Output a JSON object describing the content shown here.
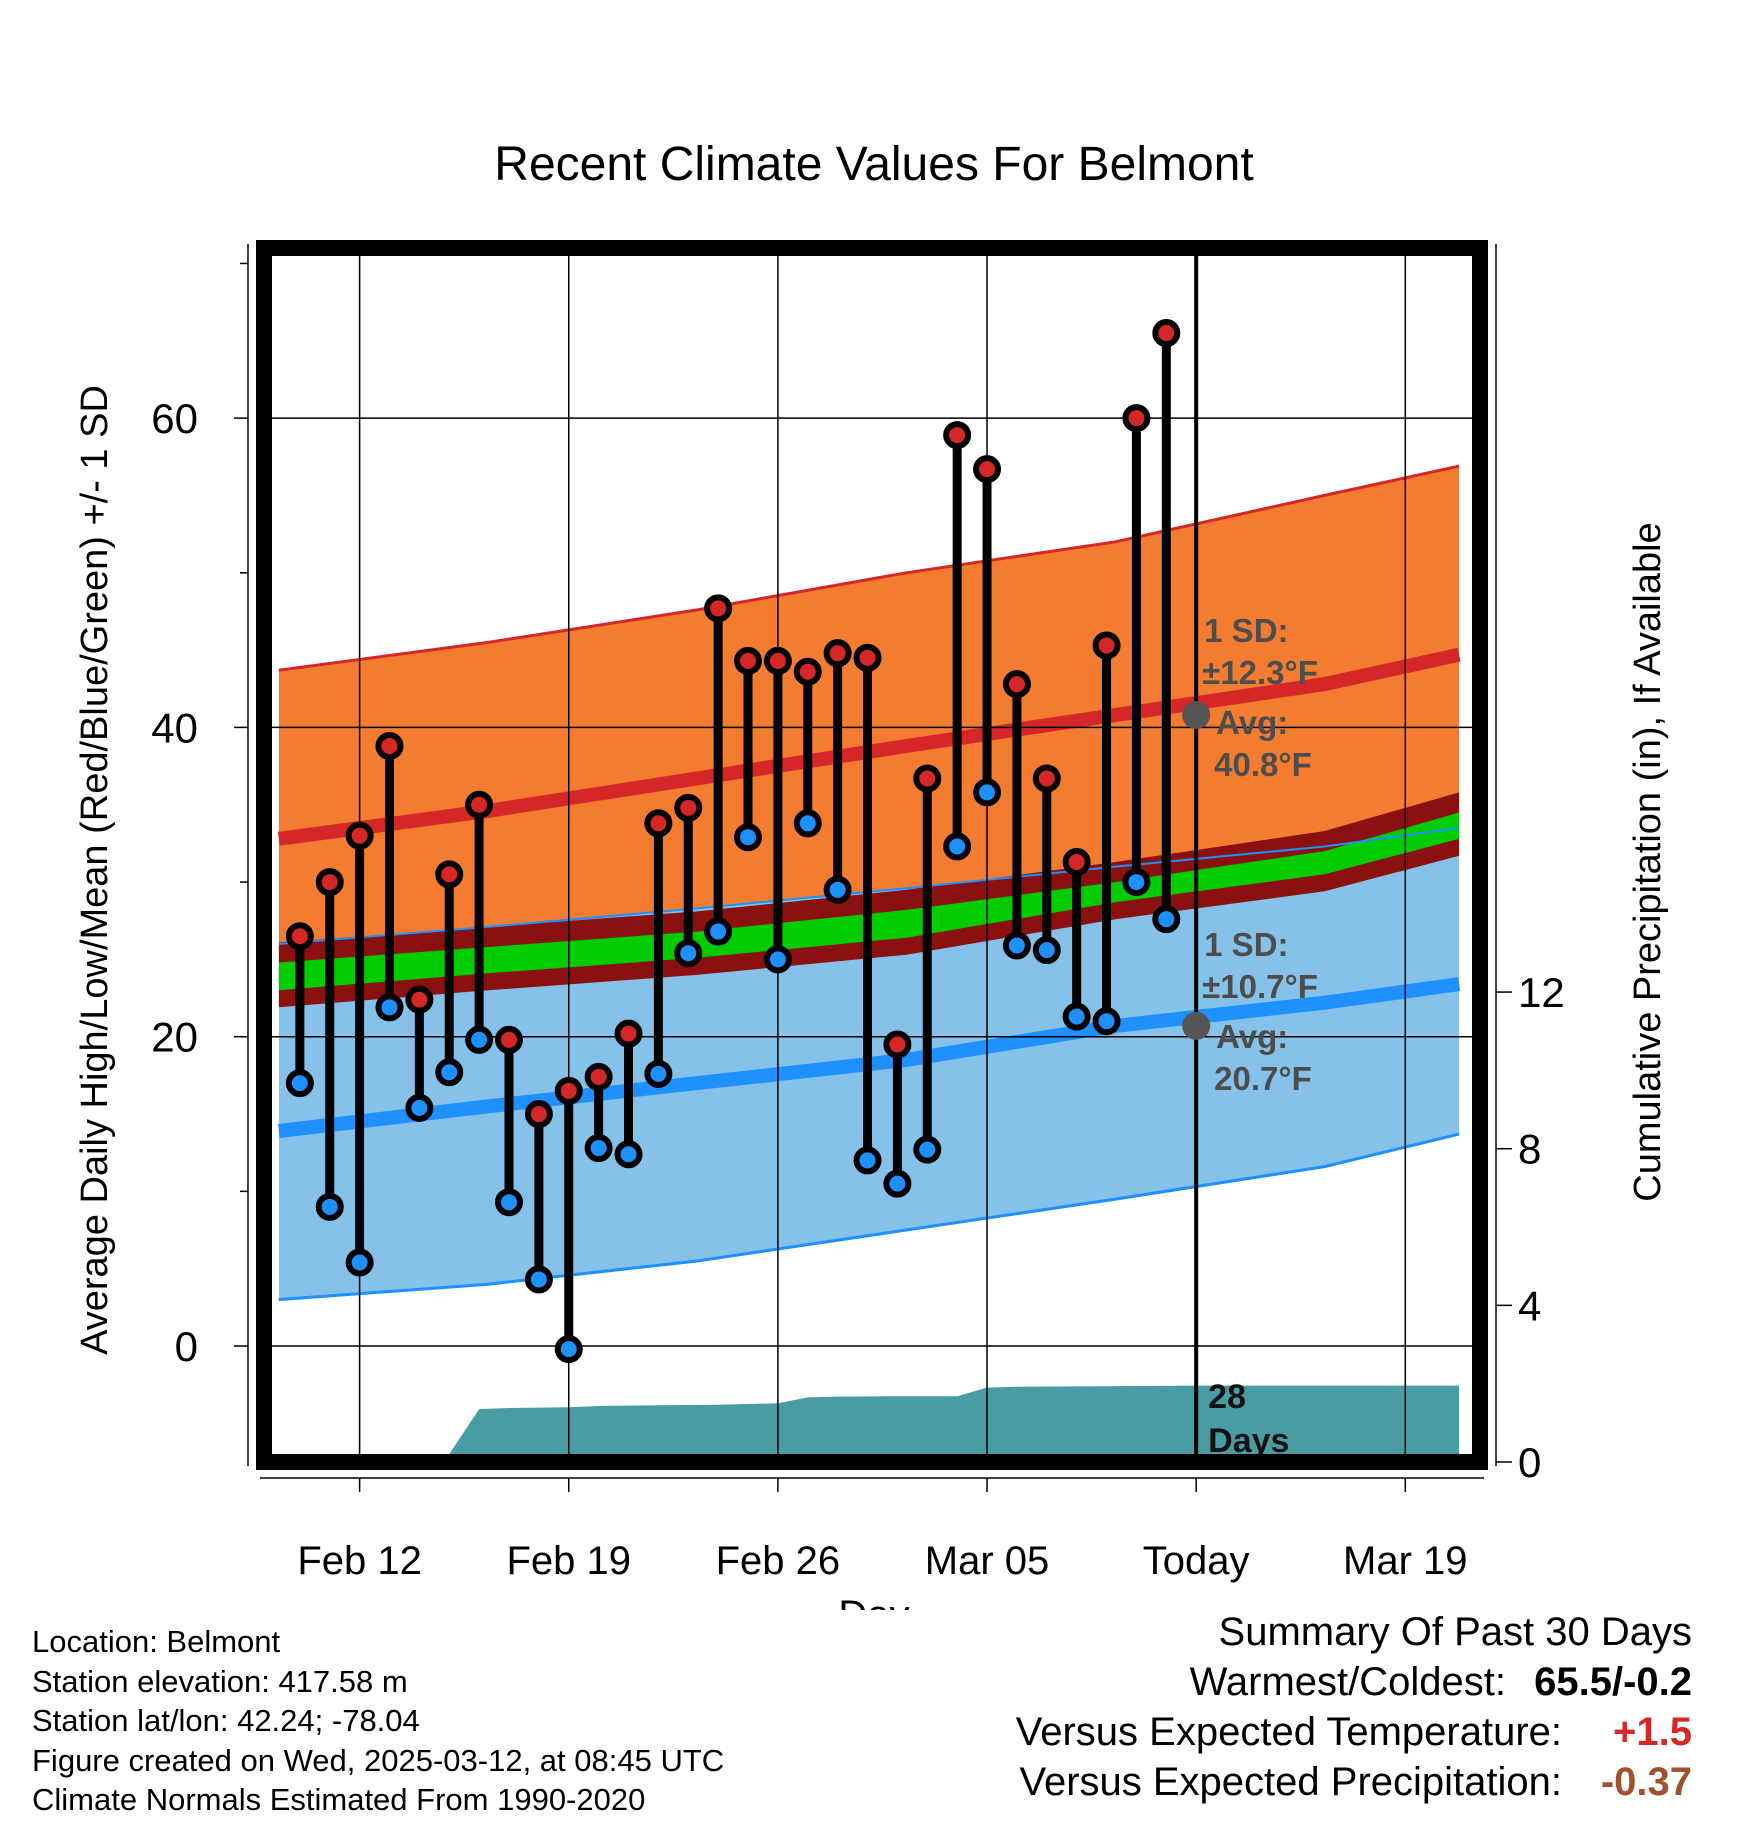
{
  "chart_data": {
    "type": "line",
    "title": "Recent Climate Values For Belmont",
    "xlabel": "Day",
    "ylabel": "Average Daily High/Low/Mean (Red/Blue/Green) +/- 1 SD",
    "y2label": "Cumulative Precipitation (in), If Available",
    "xlim_day": [
      -3.2,
      37.5
    ],
    "ylim": [
      -7.5,
      71
    ],
    "y2lim": [
      0,
      31
    ],
    "y_ticks": [
      0,
      20,
      40,
      60
    ],
    "y2_ticks": [
      0,
      4,
      8,
      12
    ],
    "x_ticks": [
      {
        "day": 0,
        "label": "Feb 12"
      },
      {
        "day": 7,
        "label": "Feb 19"
      },
      {
        "day": 14,
        "label": "Feb 26"
      },
      {
        "day": 21,
        "label": "Mar 05"
      },
      {
        "day": 28,
        "label": "Today"
      },
      {
        "day": 35,
        "label": "Mar 19"
      }
    ],
    "normals": {
      "day": [
        -2.7,
        4.3,
        11.3,
        18.3,
        25.3,
        32.3,
        36.8
      ],
      "high_mean": [
        32.8,
        34.6,
        36.7,
        38.8,
        40.8,
        42.8,
        44.7
      ],
      "high_plus_sd": [
        43.7,
        45.5,
        47.6,
        50.0,
        52.0,
        55.0,
        56.9
      ],
      "high_minus_sd": [
        26.0,
        27.1,
        28.3,
        29.6,
        31.0,
        32.3,
        33.5
      ],
      "low_mean": [
        13.9,
        15.5,
        17.0,
        18.5,
        20.7,
        22.2,
        23.4
      ],
      "low_plus_sd": [
        26.0,
        27.1,
        28.3,
        29.6,
        31.0,
        32.3,
        33.5
      ],
      "low_minus_sd": [
        3.0,
        4.0,
        5.5,
        7.5,
        9.5,
        11.6,
        13.7
      ],
      "mean_upper": [
        24.8,
        25.8,
        26.8,
        28.2,
        30.0,
        32.0,
        34.5
      ],
      "mean_lower": [
        23.0,
        24.1,
        25.1,
        26.4,
        28.7,
        30.5,
        32.8
      ]
    },
    "series": [
      {
        "name": "High",
        "color": "#d62728",
        "day": [
          -2,
          -1,
          0,
          1,
          2,
          3,
          4,
          5,
          6,
          7,
          8,
          9,
          10,
          11,
          12,
          13,
          14,
          15,
          16,
          17,
          18,
          19,
          20,
          21,
          22,
          23,
          24,
          25,
          26,
          27
        ],
        "values": [
          26.5,
          30.0,
          33.0,
          38.8,
          22.4,
          30.5,
          35.0,
          19.8,
          15.0,
          16.5,
          17.4,
          20.2,
          33.8,
          34.8,
          47.7,
          44.3,
          44.3,
          43.6,
          44.8,
          44.5,
          19.5,
          36.7,
          58.9,
          56.7,
          42.8,
          36.7,
          31.3,
          45.3,
          60.0,
          65.5
        ]
      },
      {
        "name": "Low",
        "color": "#1e90ff",
        "day": [
          -2,
          -1,
          0,
          1,
          2,
          3,
          4,
          5,
          6,
          7,
          8,
          9,
          10,
          11,
          12,
          13,
          14,
          15,
          16,
          17,
          18,
          19,
          20,
          21,
          22,
          23,
          24,
          25,
          26,
          27
        ],
        "values": [
          17.0,
          9.0,
          5.4,
          21.9,
          15.4,
          17.7,
          19.8,
          9.3,
          4.3,
          -0.2,
          12.8,
          12.4,
          17.6,
          25.4,
          26.8,
          32.9,
          25.0,
          33.8,
          29.5,
          12.0,
          10.5,
          12.7,
          32.3,
          35.8,
          25.9,
          25.6,
          21.3,
          21.0,
          30.0,
          27.6
        ]
      }
    ],
    "precip_cumulative": {
      "day": [
        -2.7,
        0.5,
        1,
        2,
        3,
        4,
        5,
        7,
        8,
        10,
        12,
        14,
        15,
        16,
        18,
        20,
        21,
        22,
        24,
        26,
        28,
        36.8
      ],
      "values": [
        0,
        0,
        0.05,
        0.1,
        0.2,
        1.35,
        1.38,
        1.4,
        1.43,
        1.45,
        1.46,
        1.5,
        1.65,
        1.67,
        1.68,
        1.68,
        1.9,
        1.92,
        1.93,
        1.94,
        1.95,
        1.95
      ]
    },
    "annotations": {
      "high_sd": "1 SD:",
      "high_sd_value": "±12.3°F",
      "high_avg": "Avg:",
      "high_avg_value": "40.8°F",
      "low_sd": "1 SD:",
      "low_sd_value": "±10.7°F",
      "low_avg": "Avg:",
      "low_avg_value": "20.7°F",
      "precip_days": "28",
      "precip_days_unit": "Days"
    },
    "colors": {
      "high_band": "#f47c30",
      "high_line": "#d62728",
      "low_band": "#85c1e9",
      "low_line": "#1e90ff",
      "mean_band": "#00cc00",
      "mean_band_edge": "#8b1010",
      "precip": "#4a9ca4",
      "marker_gray": "#555555"
    }
  },
  "metadata": {
    "location": "Location: Belmont",
    "elevation": "Station elevation: 417.58 m",
    "latlon": "Station lat/lon: 42.24; -78.04",
    "created": "Figure created on Wed, 2025-03-12, at 08:45 UTC",
    "normals": "Climate Normals Estimated From 1990-2020"
  },
  "summary": {
    "title": "Summary Of Past 30 Days",
    "warmest_coldest_label": "Warmest/Coldest:",
    "warmest_coldest_value": "65.5/-0.2",
    "temp_label": "Versus Expected Temperature:",
    "temp_value": "+1.5",
    "precip_label": "Versus Expected Precipitation:",
    "precip_value": "-0.37"
  }
}
